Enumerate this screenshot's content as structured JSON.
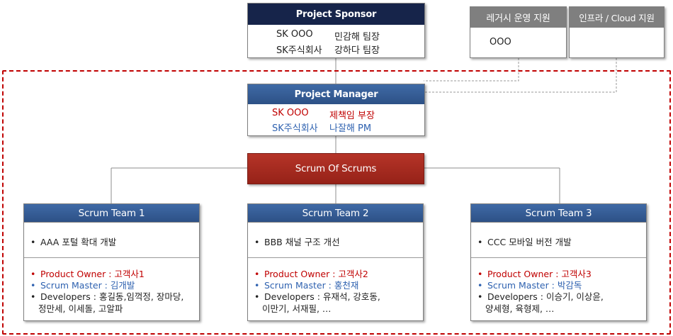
{
  "sponsor": {
    "title": "Project Sponsor",
    "rows": [
      {
        "org": "SK OOO",
        "person": "민감해 팀장"
      },
      {
        "org": "SK주식회사",
        "person": "강하다 팀장"
      }
    ]
  },
  "legacy_support": {
    "title": "레거시 운영 지원",
    "body": "OOO"
  },
  "infra_support": {
    "title": "인프라 / Cloud 지원",
    "body": ""
  },
  "manager": {
    "title": "Project Manager",
    "rows": [
      {
        "org": "SK OOO",
        "person": "제책임 부장"
      },
      {
        "org": "SK주식회사",
        "person": "나잘해 PM"
      }
    ]
  },
  "scrum_of_scrums": {
    "title": "Scrum Of Scrums"
  },
  "teams": [
    {
      "title": "Scrum Team 1",
      "goal": "AAA 포털 확대 개발",
      "product_owner": "Product Owner : 고객사1",
      "scrum_master": "Scrum Master : 김개발",
      "developers_line1": "Developers : 홍길동,임꺽정, 장마당,",
      "developers_line2": "정만세, 이세돌, 고알파"
    },
    {
      "title": "Scrum Team 2",
      "goal": "BBB 채널 구조 개선",
      "product_owner": "Product Owner : 고객사2",
      "scrum_master": "Scrum Master : 홍천재",
      "developers_line1": "Developers : 유재석, 강호동,",
      "developers_line2": "이만기, 서재필, …"
    },
    {
      "title": "Scrum Team 3",
      "goal": "CCC 모바일 버전 개발",
      "product_owner": "Product Owner : 고객사3",
      "scrum_master": "Scrum Master : 박감독",
      "developers_line1": "Developers : 이승기, 이상윤,",
      "developers_line2": "양세형, 육형제, …"
    }
  ],
  "colors": {
    "header_navy": "#16244a",
    "header_blue": "#355d95",
    "header_dark_red": "#a52a1f",
    "header_gray": "#7f7f7f",
    "frame_red": "#c00000",
    "text_red": "#c00000",
    "text_blue": "#2f62b0"
  }
}
